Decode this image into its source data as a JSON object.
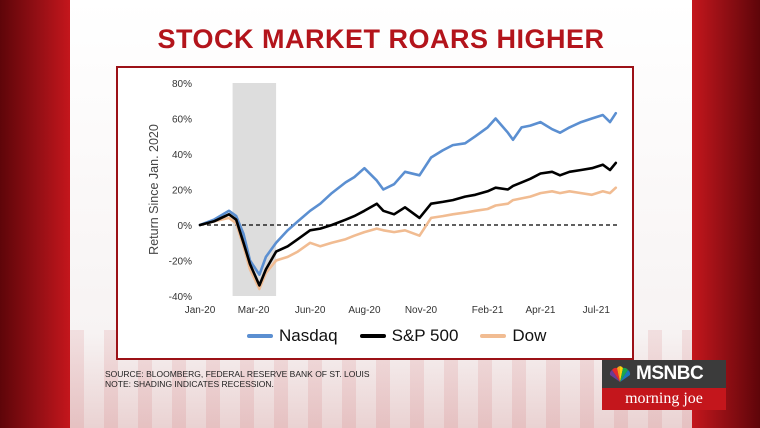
{
  "header": {
    "title": "STOCK MARKET ROARS HIGHER"
  },
  "source": {
    "line1": "SOURCE: BLOOMBERG, FEDERAL RESERVE BANK OF ST. LOUIS",
    "line2": "NOTE: SHADING INDICATES RECESSION."
  },
  "branding": {
    "network": "MSNBC",
    "show": "morning joe",
    "peacock-icon": "peacock-logo"
  },
  "colors": {
    "nasdaq": "#5b8fd1",
    "sp500": "#000000",
    "dow": "#f1bc92",
    "recession": "#d9d9d9",
    "accent": "#b3141b"
  },
  "chart_data": {
    "type": "line",
    "title": "",
    "xlabel": "",
    "ylabel": "Return Since Jan. 2020",
    "ylim": [
      -40,
      80
    ],
    "yticks": [
      -40,
      -20,
      0,
      20,
      40,
      60,
      80
    ],
    "ytick_labels": [
      "-40%",
      "-20%",
      "0%",
      "20%",
      "40%",
      "60%",
      "80%"
    ],
    "xlim": [
      "2020-01-01",
      "2021-07-31"
    ],
    "xtick_labels": [
      "Jan-20",
      "Mar-20",
      "Jun-20",
      "Aug-20",
      "Nov-20",
      "Feb-21",
      "Apr-21",
      "Jul-21"
    ],
    "xtick_dates": [
      "2020-01-01",
      "2020-03-15",
      "2020-06-01",
      "2020-08-15",
      "2020-11-01",
      "2021-02-01",
      "2021-04-15",
      "2021-07-01"
    ],
    "zero_line": "dashed",
    "grid": false,
    "legend": "bottom",
    "shaded_regions": [
      {
        "start": "2020-02-15",
        "end": "2020-04-15"
      }
    ],
    "series": [
      {
        "name": "Nasdaq",
        "dates": [
          "2020-01-01",
          "2020-01-20",
          "2020-02-10",
          "2020-02-20",
          "2020-03-01",
          "2020-03-10",
          "2020-03-23",
          "2020-04-01",
          "2020-04-15",
          "2020-05-01",
          "2020-05-15",
          "2020-06-01",
          "2020-06-15",
          "2020-07-01",
          "2020-07-20",
          "2020-08-01",
          "2020-08-15",
          "2020-09-01",
          "2020-09-10",
          "2020-09-25",
          "2020-10-10",
          "2020-10-30",
          "2020-11-15",
          "2020-12-01",
          "2020-12-15",
          "2021-01-01",
          "2021-01-15",
          "2021-02-01",
          "2021-02-12",
          "2021-03-01",
          "2021-03-08",
          "2021-03-20",
          "2021-04-01",
          "2021-04-15",
          "2021-05-01",
          "2021-05-12",
          "2021-05-25",
          "2021-06-10",
          "2021-06-25",
          "2021-07-10",
          "2021-07-20",
          "2021-07-28"
        ],
        "values": [
          0,
          3,
          8,
          5,
          -5,
          -20,
          -28,
          -18,
          -10,
          -3,
          2,
          8,
          12,
          18,
          24,
          27,
          32,
          25,
          20,
          23,
          30,
          28,
          38,
          42,
          45,
          46,
          50,
          55,
          60,
          52,
          48,
          55,
          56,
          58,
          54,
          52,
          55,
          58,
          60,
          62,
          58,
          63
        ]
      },
      {
        "name": "S&P 500",
        "dates": [
          "2020-01-01",
          "2020-01-20",
          "2020-02-10",
          "2020-02-20",
          "2020-03-01",
          "2020-03-10",
          "2020-03-23",
          "2020-04-01",
          "2020-04-15",
          "2020-05-01",
          "2020-05-15",
          "2020-06-01",
          "2020-06-15",
          "2020-07-01",
          "2020-07-20",
          "2020-08-01",
          "2020-08-15",
          "2020-09-01",
          "2020-09-10",
          "2020-09-25",
          "2020-10-10",
          "2020-10-30",
          "2020-11-15",
          "2020-12-01",
          "2020-12-15",
          "2021-01-01",
          "2021-01-15",
          "2021-02-01",
          "2021-02-12",
          "2021-03-01",
          "2021-03-08",
          "2021-03-20",
          "2021-04-01",
          "2021-04-15",
          "2021-05-01",
          "2021-05-12",
          "2021-05-25",
          "2021-06-10",
          "2021-06-25",
          "2021-07-10",
          "2021-07-20",
          "2021-07-28"
        ],
        "values": [
          0,
          2,
          6,
          3,
          -10,
          -22,
          -34,
          -25,
          -15,
          -12,
          -8,
          -3,
          -2,
          0,
          3,
          5,
          8,
          12,
          8,
          6,
          10,
          4,
          12,
          13,
          14,
          16,
          17,
          19,
          21,
          20,
          22,
          24,
          26,
          29,
          30,
          28,
          30,
          31,
          32,
          34,
          31,
          35
        ]
      },
      {
        "name": "Dow",
        "dates": [
          "2020-01-01",
          "2020-01-20",
          "2020-02-10",
          "2020-02-20",
          "2020-03-01",
          "2020-03-10",
          "2020-03-23",
          "2020-04-01",
          "2020-04-15",
          "2020-05-01",
          "2020-05-15",
          "2020-06-01",
          "2020-06-15",
          "2020-07-01",
          "2020-07-20",
          "2020-08-01",
          "2020-08-15",
          "2020-09-01",
          "2020-09-10",
          "2020-09-25",
          "2020-10-10",
          "2020-10-30",
          "2020-11-15",
          "2020-12-01",
          "2020-12-15",
          "2021-01-01",
          "2021-01-15",
          "2021-02-01",
          "2021-02-12",
          "2021-03-01",
          "2021-03-08",
          "2021-03-20",
          "2021-04-01",
          "2021-04-15",
          "2021-05-01",
          "2021-05-12",
          "2021-05-25",
          "2021-06-10",
          "2021-06-25",
          "2021-07-10",
          "2021-07-20",
          "2021-07-28"
        ],
        "values": [
          0,
          2,
          4,
          1,
          -12,
          -25,
          -36,
          -27,
          -20,
          -18,
          -15,
          -10,
          -12,
          -10,
          -8,
          -6,
          -4,
          -2,
          -3,
          -4,
          -3,
          -6,
          4,
          5,
          6,
          7,
          8,
          9,
          11,
          12,
          14,
          15,
          16,
          18,
          19,
          18,
          19,
          18,
          17,
          19,
          18,
          21
        ]
      }
    ]
  }
}
